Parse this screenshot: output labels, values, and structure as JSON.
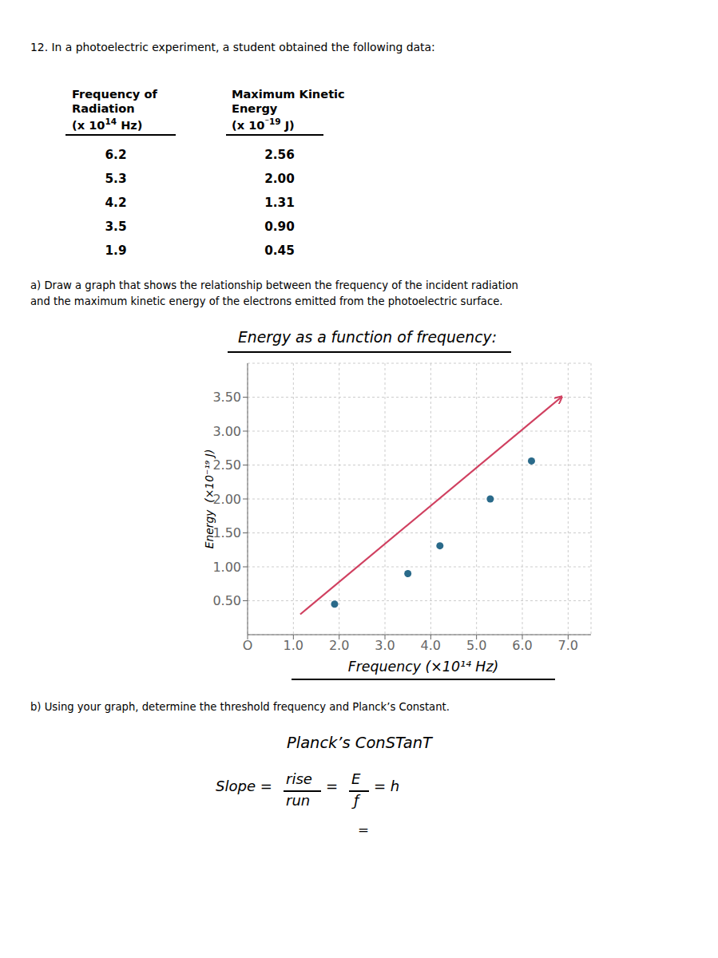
{
  "chart_data": {
    "type": "scatter",
    "title": "Energy as a function of frequency:",
    "x_label": "Frequency (×10¹⁴ Hz)",
    "y_label": "Energy  (×10⁻¹⁹ J)",
    "xlim": [
      0,
      7.5
    ],
    "ylim": [
      0,
      4.0
    ],
    "xticks": [
      {
        "value": 0,
        "label": "O"
      },
      {
        "value": 1.0,
        "label": "1.0"
      },
      {
        "value": 2.0,
        "label": "2.0"
      },
      {
        "value": 3.0,
        "label": "3.0"
      },
      {
        "value": 4.0,
        "label": "4.0"
      },
      {
        "value": 5.0,
        "label": "5.0"
      },
      {
        "value": 6.0,
        "label": "6.0"
      },
      {
        "value": 7.0,
        "label": "7.0"
      }
    ],
    "yticks": [
      {
        "value": 0.5,
        "label": "0.50"
      },
      {
        "value": 1.0,
        "label": "1.00"
      },
      {
        "value": 1.5,
        "label": "1.50"
      },
      {
        "value": 2.0,
        "label": "2.00"
      },
      {
        "value": 2.5,
        "label": "2.50"
      },
      {
        "value": 3.0,
        "label": "3.00"
      },
      {
        "value": 3.5,
        "label": "3.50"
      }
    ],
    "grid": true,
    "series": [
      {
        "type": "scatter",
        "marker": "circle",
        "color": "#2a6a8a",
        "x": [
          6.2,
          5.3,
          4.2,
          3.5,
          1.9
        ],
        "values": [
          2.56,
          2.0,
          1.31,
          0.9,
          0.45
        ],
        "value_labels": [
          "2.56",
          "2.00",
          "1.31",
          "0.90",
          "0.45"
        ]
      },
      {
        "type": "line",
        "marker": "arrow",
        "color": "#d04060",
        "x": [
          1.15,
          6.85
        ],
        "values": [
          0.3,
          3.5
        ]
      }
    ],
    "annotations": [
      "12. In a photoelectric experiment, a student obtained the following data:",
      "Frequency of",
      "Radiation",
      "(x 10",
      "14",
      " Hz)",
      "Maximum Kinetic",
      "Energy",
      "(x 10",
      "⁻19",
      " J)",
      "a) Draw a graph that shows the relationship between the frequency of the incident radiation",
      "and the maximum kinetic energy of the electrons emitted from the photoelectric surface.",
      "b) Using your graph, determine the threshold frequency and Planck’s Constant.",
      "Planck’s ConSTanT",
      "Slope =",
      "rise",
      "run",
      "=",
      "E",
      "ƒ",
      "= h",
      "="
    ]
  }
}
